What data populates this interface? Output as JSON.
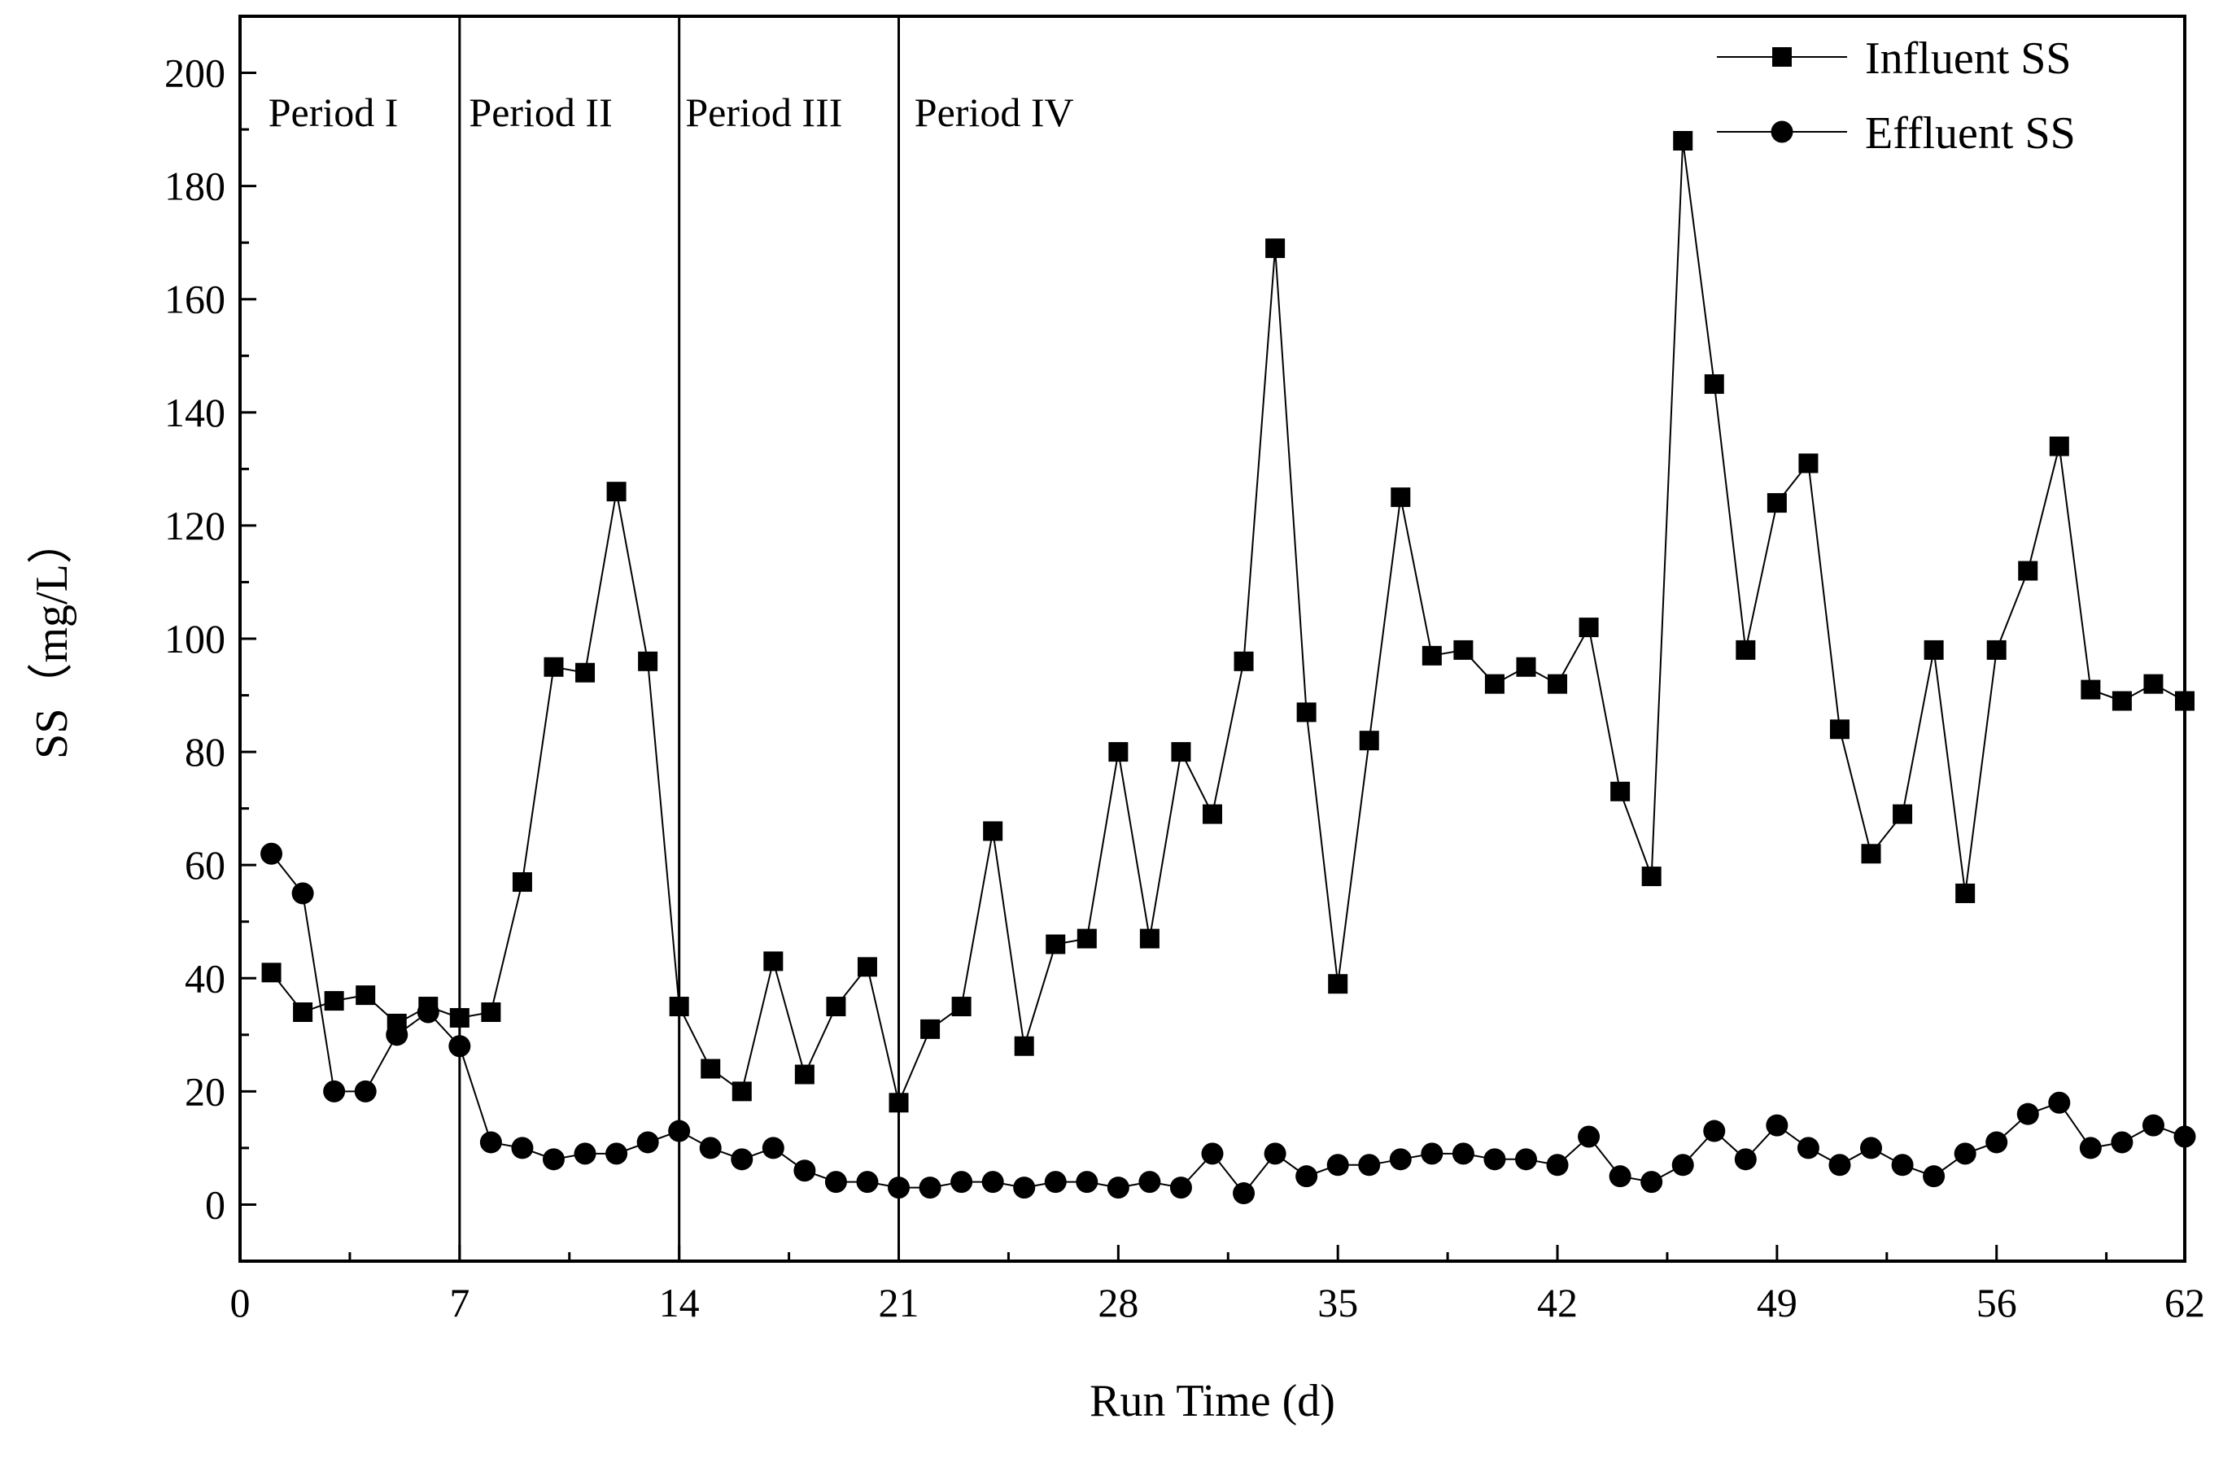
{
  "chart_data": {
    "type": "line",
    "title": "",
    "xlabel": "Run Time (d)",
    "ylabel": "SS（mg/L）",
    "xlim": [
      0,
      62
    ],
    "ylim": [
      -10,
      210
    ],
    "xticks": [
      0,
      7,
      14,
      21,
      28,
      35,
      42,
      49,
      56,
      62
    ],
    "yticks": [
      0,
      20,
      40,
      60,
      80,
      100,
      120,
      140,
      160,
      180,
      200
    ],
    "period_lines": [
      7,
      14,
      21
    ],
    "periods": [
      {
        "label": "Period I",
        "x": 0.9
      },
      {
        "label": "Period II",
        "x": 7.3
      },
      {
        "label": "Period III",
        "x": 14.2
      },
      {
        "label": "Period IV",
        "x": 21.5
      }
    ],
    "legend_position": "top-right",
    "series": [
      {
        "name": "Influent SS",
        "marker": "square",
        "x": [
          1,
          2,
          3,
          4,
          5,
          6,
          7,
          8,
          9,
          10,
          11,
          12,
          13,
          14,
          15,
          16,
          17,
          18,
          19,
          20,
          21,
          22,
          23,
          24,
          25,
          26,
          27,
          28,
          29,
          30,
          31,
          32,
          33,
          34,
          35,
          36,
          37,
          38,
          39,
          40,
          41,
          42,
          43,
          44,
          45,
          46,
          47,
          48,
          49,
          50,
          51,
          52,
          53,
          54,
          55,
          56,
          57,
          58,
          59,
          60,
          61,
          62
        ],
        "values": [
          41,
          34,
          36,
          37,
          32,
          35,
          33,
          34,
          57,
          95,
          94,
          126,
          96,
          35,
          24,
          20,
          43,
          23,
          35,
          42,
          18,
          31,
          35,
          66,
          28,
          46,
          47,
          80,
          47,
          80,
          69,
          96,
          169,
          87,
          39,
          82,
          125,
          97,
          98,
          92,
          95,
          92,
          102,
          73,
          58,
          188,
          145,
          98,
          124,
          131,
          84,
          62,
          69,
          98,
          55,
          98,
          112,
          134,
          91,
          89,
          92,
          89
        ]
      },
      {
        "name": "Effluent SS",
        "marker": "circle",
        "x": [
          1,
          2,
          3,
          4,
          5,
          6,
          7,
          8,
          9,
          10,
          11,
          12,
          13,
          14,
          15,
          16,
          17,
          18,
          19,
          20,
          21,
          22,
          23,
          24,
          25,
          26,
          27,
          28,
          29,
          30,
          31,
          32,
          33,
          34,
          35,
          36,
          37,
          38,
          39,
          40,
          41,
          42,
          43,
          44,
          45,
          46,
          47,
          48,
          49,
          50,
          51,
          52,
          53,
          54,
          55,
          56,
          57,
          58,
          59,
          60,
          61,
          62
        ],
        "values": [
          62,
          55,
          20,
          20,
          30,
          34,
          28,
          11,
          10,
          8,
          9,
          9,
          11,
          13,
          10,
          8,
          10,
          6,
          4,
          4,
          3,
          3,
          4,
          4,
          3,
          4,
          4,
          3,
          4,
          3,
          9,
          2,
          9,
          5,
          7,
          7,
          8,
          9,
          9,
          8,
          8,
          7,
          12,
          5,
          4,
          7,
          13,
          8,
          14,
          10,
          7,
          10,
          7,
          5,
          9,
          11,
          16,
          18,
          10,
          11,
          14,
          12
        ]
      }
    ]
  }
}
